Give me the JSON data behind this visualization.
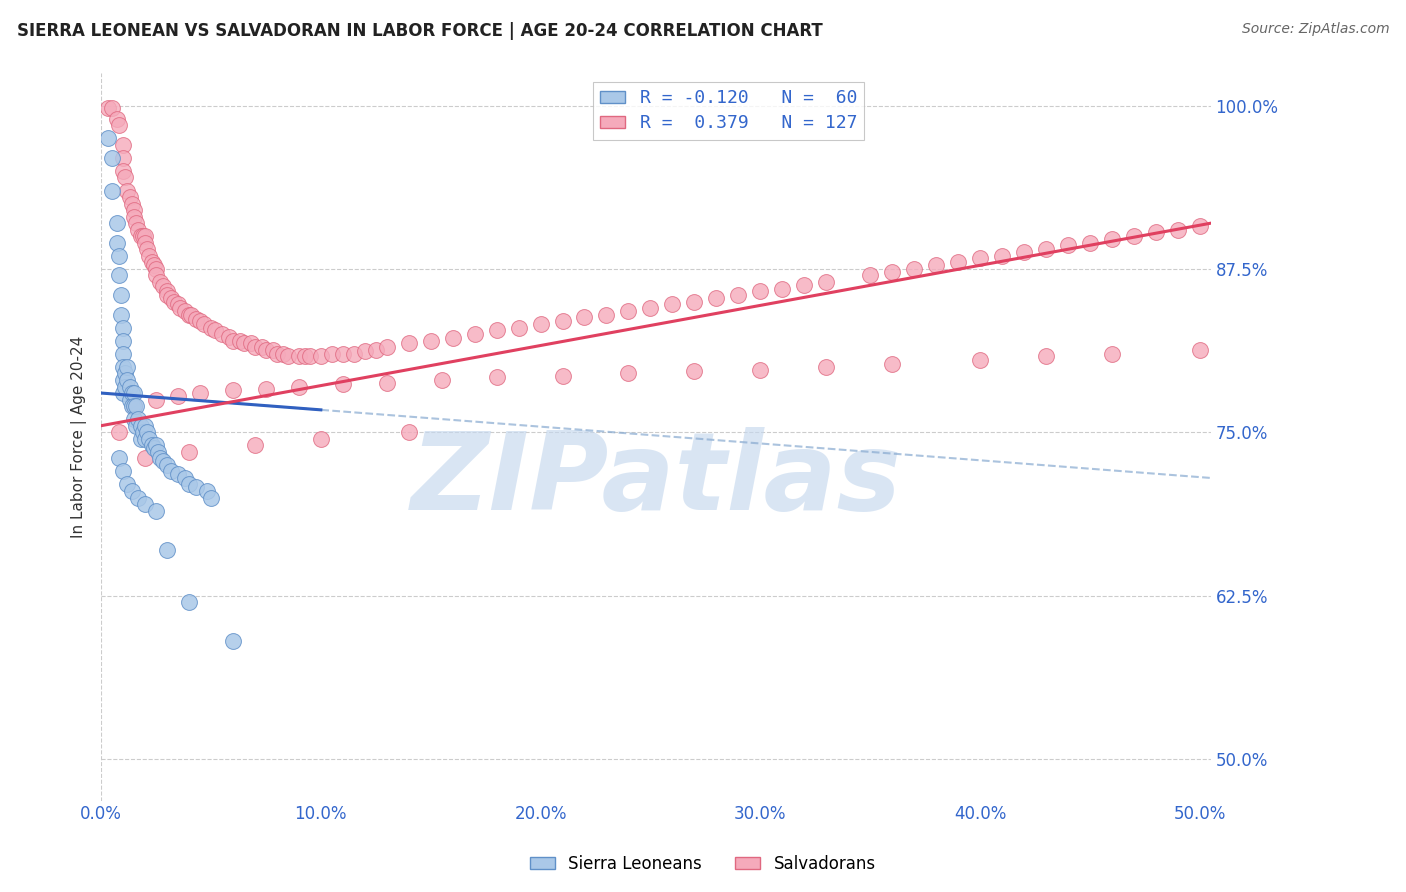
{
  "title": "SIERRA LEONEAN VS SALVADORAN IN LABOR FORCE | AGE 20-24 CORRELATION CHART",
  "source": "Source: ZipAtlas.com",
  "ylabel": "In Labor Force | Age 20-24",
  "right_ytick_labels": [
    "100.0%",
    "87.5%",
    "75.0%",
    "62.5%",
    "50.0%"
  ],
  "right_ytick_values": [
    1.0,
    0.875,
    0.75,
    0.625,
    0.5
  ],
  "xmin": 0.0,
  "xmax": 0.505,
  "ymin": 0.468,
  "ymax": 1.025,
  "x_tick_vals": [
    0.0,
    0.1,
    0.2,
    0.3,
    0.4,
    0.5
  ],
  "x_tick_labels": [
    "0.0%",
    "10.0%",
    "20.0%",
    "30.0%",
    "40.0%",
    "50.0%"
  ],
  "legend_line1": "R = -0.120   N =  60",
  "legend_line2": "R =  0.379   N = 127",
  "blue_face": "#aac8e8",
  "blue_edge": "#6090c8",
  "pink_face": "#f5aabb",
  "pink_edge": "#e06880",
  "trend_blue_solid": "#3060c0",
  "trend_blue_dash": "#88aad0",
  "trend_pink": "#e04060",
  "grid_color": "#cccccc",
  "label_color": "#3366cc",
  "title_color": "#222222",
  "source_color": "#666666",
  "watermark": "ZIPatlas",
  "watermark_color": "#c5d8ee",
  "bg_color": "#ffffff",
  "blue_x": [
    0.003,
    0.005,
    0.005,
    0.007,
    0.007,
    0.008,
    0.008,
    0.009,
    0.009,
    0.01,
    0.01,
    0.01,
    0.01,
    0.01,
    0.01,
    0.011,
    0.011,
    0.012,
    0.012,
    0.013,
    0.013,
    0.014,
    0.014,
    0.015,
    0.015,
    0.015,
    0.016,
    0.016,
    0.017,
    0.018,
    0.018,
    0.019,
    0.02,
    0.02,
    0.021,
    0.022,
    0.023,
    0.024,
    0.025,
    0.026,
    0.027,
    0.028,
    0.03,
    0.032,
    0.035,
    0.038,
    0.04,
    0.043,
    0.048,
    0.05,
    0.008,
    0.01,
    0.012,
    0.014,
    0.017,
    0.02,
    0.025,
    0.03,
    0.04,
    0.06
  ],
  "blue_y": [
    0.975,
    0.96,
    0.935,
    0.91,
    0.895,
    0.885,
    0.87,
    0.855,
    0.84,
    0.83,
    0.82,
    0.81,
    0.8,
    0.79,
    0.78,
    0.795,
    0.785,
    0.8,
    0.79,
    0.785,
    0.775,
    0.78,
    0.77,
    0.78,
    0.77,
    0.76,
    0.77,
    0.755,
    0.76,
    0.755,
    0.745,
    0.75,
    0.755,
    0.745,
    0.75,
    0.745,
    0.74,
    0.738,
    0.74,
    0.735,
    0.73,
    0.728,
    0.725,
    0.72,
    0.718,
    0.715,
    0.71,
    0.708,
    0.705,
    0.7,
    0.73,
    0.72,
    0.71,
    0.705,
    0.7,
    0.695,
    0.69,
    0.66,
    0.62,
    0.59
  ],
  "pink_x": [
    0.003,
    0.005,
    0.007,
    0.008,
    0.01,
    0.01,
    0.01,
    0.011,
    0.012,
    0.013,
    0.014,
    0.015,
    0.015,
    0.016,
    0.017,
    0.018,
    0.019,
    0.02,
    0.02,
    0.021,
    0.022,
    0.023,
    0.024,
    0.025,
    0.025,
    0.027,
    0.028,
    0.03,
    0.03,
    0.032,
    0.033,
    0.035,
    0.036,
    0.038,
    0.04,
    0.041,
    0.043,
    0.045,
    0.047,
    0.05,
    0.052,
    0.055,
    0.058,
    0.06,
    0.063,
    0.065,
    0.068,
    0.07,
    0.073,
    0.075,
    0.078,
    0.08,
    0.083,
    0.085,
    0.09,
    0.093,
    0.095,
    0.1,
    0.105,
    0.11,
    0.115,
    0.12,
    0.125,
    0.13,
    0.14,
    0.15,
    0.16,
    0.17,
    0.18,
    0.19,
    0.2,
    0.21,
    0.22,
    0.23,
    0.24,
    0.25,
    0.26,
    0.27,
    0.28,
    0.29,
    0.3,
    0.31,
    0.32,
    0.33,
    0.35,
    0.36,
    0.37,
    0.38,
    0.39,
    0.4,
    0.41,
    0.42,
    0.43,
    0.44,
    0.45,
    0.46,
    0.47,
    0.48,
    0.49,
    0.5,
    0.008,
    0.015,
    0.025,
    0.035,
    0.045,
    0.06,
    0.075,
    0.09,
    0.11,
    0.13,
    0.155,
    0.18,
    0.21,
    0.24,
    0.27,
    0.3,
    0.33,
    0.36,
    0.4,
    0.43,
    0.46,
    0.5,
    0.02,
    0.04,
    0.07,
    0.1,
    0.14
  ],
  "pink_y": [
    0.998,
    0.998,
    0.99,
    0.985,
    0.97,
    0.96,
    0.95,
    0.945,
    0.935,
    0.93,
    0.925,
    0.92,
    0.915,
    0.91,
    0.905,
    0.9,
    0.9,
    0.9,
    0.895,
    0.89,
    0.885,
    0.88,
    0.878,
    0.875,
    0.87,
    0.865,
    0.862,
    0.858,
    0.855,
    0.853,
    0.85,
    0.848,
    0.845,
    0.843,
    0.84,
    0.84,
    0.837,
    0.835,
    0.833,
    0.83,
    0.828,
    0.825,
    0.823,
    0.82,
    0.82,
    0.818,
    0.818,
    0.815,
    0.815,
    0.813,
    0.813,
    0.81,
    0.81,
    0.808,
    0.808,
    0.808,
    0.808,
    0.808,
    0.81,
    0.81,
    0.81,
    0.812,
    0.813,
    0.815,
    0.818,
    0.82,
    0.822,
    0.825,
    0.828,
    0.83,
    0.833,
    0.835,
    0.838,
    0.84,
    0.843,
    0.845,
    0.848,
    0.85,
    0.853,
    0.855,
    0.858,
    0.86,
    0.863,
    0.865,
    0.87,
    0.873,
    0.875,
    0.878,
    0.88,
    0.883,
    0.885,
    0.888,
    0.89,
    0.893,
    0.895,
    0.898,
    0.9,
    0.903,
    0.905,
    0.908,
    0.75,
    0.77,
    0.775,
    0.778,
    0.78,
    0.782,
    0.783,
    0.785,
    0.787,
    0.788,
    0.79,
    0.792,
    0.793,
    0.795,
    0.797,
    0.798,
    0.8,
    0.802,
    0.805,
    0.808,
    0.81,
    0.813,
    0.73,
    0.735,
    0.74,
    0.745,
    0.75
  ],
  "trend_blue_x0": 0.0,
  "trend_blue_x1": 0.505,
  "trend_blue_y0": 0.78,
  "trend_blue_y1": 0.715,
  "trend_pink_x0": 0.0,
  "trend_pink_x1": 0.505,
  "trend_pink_y0": 0.755,
  "trend_pink_y1": 0.91
}
